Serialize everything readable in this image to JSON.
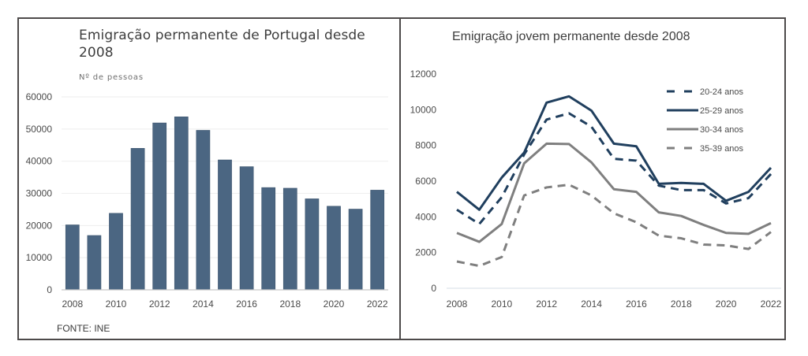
{
  "source_label": "FONTE: INE",
  "colors": {
    "bar": "#4b6682",
    "dark_navy": "#203f5e",
    "gray": "#7f7f7f",
    "border": "#4d4a4a",
    "grid": "#eeeeee"
  },
  "chart_data": [
    {
      "type": "bar",
      "title": "Emigração permanente de Portugal desde 2008",
      "subtitle": "Nº de pessoas",
      "xlabel": "",
      "ylabel": "Nº de pessoas",
      "ylim": [
        0,
        60000
      ],
      "yticks": [
        "0",
        "10000",
        "20000",
        "30000",
        "40000",
        "50000",
        "60000"
      ],
      "ytick_values": [
        0,
        10000,
        20000,
        30000,
        40000,
        50000,
        60000
      ],
      "xtick_labels": [
        "2008",
        "2010",
        "2012",
        "2014",
        "2016",
        "2018",
        "2020",
        "2022"
      ],
      "grid": true,
      "categories": [
        "2008",
        "2009",
        "2010",
        "2011",
        "2012",
        "2013",
        "2014",
        "2015",
        "2016",
        "2017",
        "2018",
        "2019",
        "2020",
        "2021",
        "2022"
      ],
      "values": [
        20200,
        16900,
        23800,
        44000,
        51900,
        53800,
        49600,
        40400,
        38300,
        31800,
        31600,
        28300,
        26000,
        25100,
        31000
      ]
    },
    {
      "type": "line",
      "title": "Emigração jovem permanente desde 2008",
      "xlabel": "",
      "ylabel": "",
      "ylim": [
        0,
        12000
      ],
      "yticks": [
        "0",
        "2000",
        "4000",
        "6000",
        "8000",
        "10000",
        "12000"
      ],
      "ytick_values": [
        0,
        2000,
        4000,
        6000,
        8000,
        10000,
        12000
      ],
      "xtick_labels": [
        "2008",
        "2010",
        "2012",
        "2014",
        "2016",
        "2018",
        "2020",
        "2022"
      ],
      "grid": false,
      "legend_position": "top-right",
      "x": [
        2008,
        2009,
        2010,
        2011,
        2012,
        2013,
        2014,
        2015,
        2016,
        2017,
        2018,
        2019,
        2020,
        2021,
        2022
      ],
      "series": [
        {
          "name": "20-24 anos",
          "style": "dashed",
          "color": "#203f5e",
          "values": [
            4400,
            3600,
            5100,
            7500,
            9450,
            9800,
            9050,
            7250,
            7150,
            5750,
            5500,
            5500,
            4750,
            5050,
            6400
          ]
        },
        {
          "name": "25-29 anos",
          "style": "solid",
          "color": "#203f5e",
          "values": [
            5400,
            4400,
            6200,
            7600,
            10400,
            10750,
            9950,
            8100,
            7950,
            5850,
            5900,
            5850,
            4900,
            5400,
            6750
          ]
        },
        {
          "name": "30-34 anos",
          "style": "solid",
          "color": "#7f7f7f",
          "values": [
            3100,
            2600,
            3600,
            7000,
            8100,
            8080,
            7050,
            5550,
            5400,
            4250,
            4050,
            3550,
            3100,
            3050,
            3650
          ]
        },
        {
          "name": "35-39 anos",
          "style": "dashed",
          "color": "#7f7f7f",
          "values": [
            1500,
            1250,
            1750,
            5200,
            5650,
            5800,
            5200,
            4200,
            3700,
            2950,
            2800,
            2450,
            2400,
            2200,
            3150
          ]
        }
      ]
    }
  ]
}
